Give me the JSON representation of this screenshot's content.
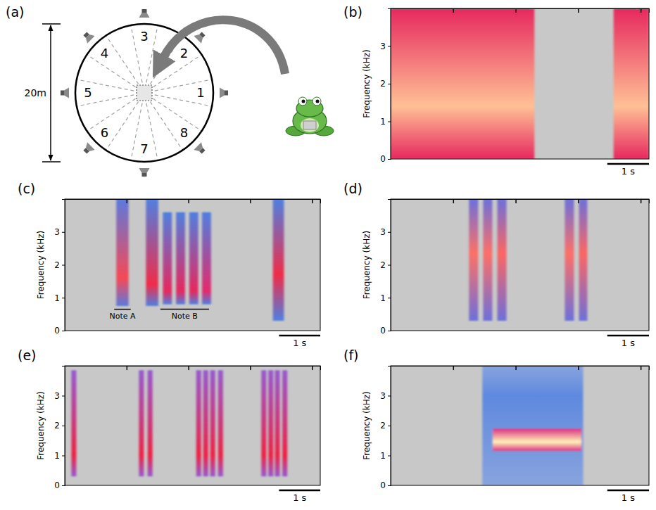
{
  "diagram": {
    "panel": "(a)",
    "diameter_label": "20m",
    "sectors": [
      "1",
      "2",
      "3",
      "4",
      "5",
      "6",
      "7",
      "8"
    ]
  },
  "chart_data": [
    {
      "panel": "(b)",
      "type": "spectrogram",
      "y_label": "Frequency (kHz)",
      "xlim": [
        0,
        6.2
      ],
      "xticks": [
        1.5,
        3,
        4.5,
        6
      ],
      "ylim": [
        0,
        4
      ],
      "yticks": [
        0,
        1,
        2,
        3
      ],
      "tick_labels": "y",
      "zlim": [
        0,
        1
      ],
      "scale_bar": {
        "value": 1,
        "label": "1 s"
      },
      "elements": [
        {
          "t": [
            0,
            3.45
          ],
          "f": [
            0,
            4
          ],
          "peak": 1.4,
          "level": 0.95,
          "floor": 0.66
        },
        {
          "t": [
            5.35,
            6.2
          ],
          "f": [
            0,
            4
          ],
          "peak": 1.4,
          "level": 0.95,
          "floor": 0.66
        }
      ]
    },
    {
      "panel": "(c)",
      "type": "spectrogram",
      "y_label": "Frequency (kHz)",
      "xlim": [
        0,
        6.2
      ],
      "xticks": [
        1.5,
        3,
        4.5,
        6
      ],
      "ylim": [
        0,
        4
      ],
      "yticks": [
        0,
        1,
        2,
        3
      ],
      "tick_labels": "y",
      "zlim": [
        0,
        1
      ],
      "scale_bar": {
        "value": 1,
        "label": "1 s"
      },
      "elements": [
        {
          "t": [
            1.25,
            1.55
          ],
          "f": [
            0.75,
            4
          ],
          "peak": 1.6,
          "level": 0.78,
          "floor": 0.32
        },
        {
          "t": [
            1.97,
            2.27
          ],
          "f": [
            0.75,
            4
          ],
          "peak": 1.4,
          "level": 0.72,
          "floor": 0.3
        },
        {
          "t": [
            2.38,
            2.6
          ],
          "f": [
            0.8,
            3.6
          ],
          "peak": 1.2,
          "level": 0.66,
          "floor": 0.3
        },
        {
          "t": [
            2.7,
            2.92
          ],
          "f": [
            0.8,
            3.6
          ],
          "peak": 1.2,
          "level": 0.66,
          "floor": 0.3
        },
        {
          "t": [
            3.02,
            3.24
          ],
          "f": [
            0.8,
            3.6
          ],
          "peak": 1.2,
          "level": 0.66,
          "floor": 0.3
        },
        {
          "t": [
            3.33,
            3.55
          ],
          "f": [
            0.8,
            3.6
          ],
          "peak": 1.2,
          "level": 0.64,
          "floor": 0.3
        },
        {
          "t": [
            5.05,
            5.32
          ],
          "f": [
            0.3,
            4
          ],
          "peak": 1.7,
          "level": 0.72,
          "floor": 0.3
        }
      ],
      "annotations": [
        {
          "text": "Note A",
          "t": [
            1.2,
            1.6
          ],
          "f": 0.65
        },
        {
          "text": "Note B",
          "t": [
            2.32,
            3.5
          ],
          "f": 0.65
        }
      ]
    },
    {
      "panel": "(d)",
      "type": "spectrogram",
      "y_label": "Frequency (kHz)",
      "xlim": [
        0,
        6.2
      ],
      "xticks": [
        1.5,
        3,
        4.5,
        6
      ],
      "ylim": [
        0,
        4
      ],
      "yticks": [
        0,
        1,
        2,
        3
      ],
      "tick_labels": "y",
      "zlim": [
        0,
        1
      ],
      "scale_bar": {
        "value": 1,
        "label": "1 s"
      },
      "elements": [
        {
          "t": [
            1.88,
            2.1
          ],
          "f": [
            0.3,
            4
          ],
          "peak": 2.35,
          "level": 0.86,
          "floor": 0.35
        },
        {
          "t": [
            2.22,
            2.44
          ],
          "f": [
            0.3,
            4
          ],
          "peak": 2.35,
          "level": 0.86,
          "floor": 0.35
        },
        {
          "t": [
            2.56,
            2.78
          ],
          "f": [
            0.3,
            4
          ],
          "peak": 2.35,
          "level": 0.84,
          "floor": 0.35
        },
        {
          "t": [
            4.18,
            4.4
          ],
          "f": [
            0.3,
            4
          ],
          "peak": 2.35,
          "level": 0.86,
          "floor": 0.35
        },
        {
          "t": [
            4.52,
            4.72
          ],
          "f": [
            0.3,
            4
          ],
          "peak": 2.35,
          "level": 0.84,
          "floor": 0.35
        }
      ]
    },
    {
      "panel": "(e)",
      "type": "spectrogram",
      "y_label": "Frequency (kHz)",
      "xlim": [
        0,
        6.2
      ],
      "xticks": [
        1.5,
        3,
        4.5,
        6
      ],
      "ylim": [
        0,
        4
      ],
      "yticks": [
        0,
        1,
        2,
        3
      ],
      "tick_labels": "y",
      "zlim": [
        0,
        1
      ],
      "scale_bar": {
        "value": 1,
        "label": "1 s"
      },
      "elements": [
        {
          "t": [
            0.16,
            0.28
          ],
          "f": [
            0.3,
            3.85
          ],
          "peak": 1.0,
          "level": 0.7,
          "floor": 0.42
        },
        {
          "t": [
            1.8,
            1.92
          ],
          "f": [
            0.3,
            3.85
          ],
          "peak": 1.0,
          "level": 0.7,
          "floor": 0.42
        },
        {
          "t": [
            2.01,
            2.13
          ],
          "f": [
            0.3,
            3.85
          ],
          "peak": 1.0,
          "level": 0.7,
          "floor": 0.42
        },
        {
          "t": [
            3.19,
            3.31
          ],
          "f": [
            0.3,
            3.85
          ],
          "peak": 1.0,
          "level": 0.7,
          "floor": 0.42
        },
        {
          "t": [
            3.36,
            3.48
          ],
          "f": [
            0.3,
            3.85
          ],
          "peak": 1.0,
          "level": 0.7,
          "floor": 0.42
        },
        {
          "t": [
            3.53,
            3.65
          ],
          "f": [
            0.3,
            3.85
          ],
          "peak": 1.0,
          "level": 0.7,
          "floor": 0.42
        },
        {
          "t": [
            3.72,
            3.84
          ],
          "f": [
            0.3,
            3.85
          ],
          "peak": 1.0,
          "level": 0.7,
          "floor": 0.42
        },
        {
          "t": [
            4.77,
            4.89
          ],
          "f": [
            0.3,
            3.85
          ],
          "peak": 1.0,
          "level": 0.7,
          "floor": 0.42
        },
        {
          "t": [
            4.94,
            5.06
          ],
          "f": [
            0.3,
            3.85
          ],
          "peak": 1.0,
          "level": 0.7,
          "floor": 0.42
        },
        {
          "t": [
            5.1,
            5.22
          ],
          "f": [
            0.3,
            3.85
          ],
          "peak": 1.0,
          "level": 0.7,
          "floor": 0.42
        },
        {
          "t": [
            5.28,
            5.4
          ],
          "f": [
            0.3,
            3.85
          ],
          "peak": 1.0,
          "level": 0.7,
          "floor": 0.42
        }
      ]
    },
    {
      "panel": "(f)",
      "type": "spectrogram",
      "y_label": "Frequency (kHz)",
      "xlim": [
        0,
        6.2
      ],
      "xticks": [
        1.5,
        3,
        4.5,
        6
      ],
      "ylim": [
        0,
        4
      ],
      "yticks": [
        0,
        1,
        2,
        3
      ],
      "tick_labels": "y",
      "zlim": [
        0,
        1
      ],
      "scale_bar": {
        "value": 1,
        "label": "1 s"
      },
      "elements": [
        {
          "t": [
            2.2,
            4.62
          ],
          "f": [
            0,
            4
          ],
          "peak": 3.0,
          "level": 0.25,
          "floor": 0.12
        },
        {
          "t": [
            2.45,
            4.58
          ],
          "f": [
            1.15,
            1.9
          ],
          "peak": 1.45,
          "level": 1.0,
          "floor": 0.6
        }
      ]
    }
  ]
}
